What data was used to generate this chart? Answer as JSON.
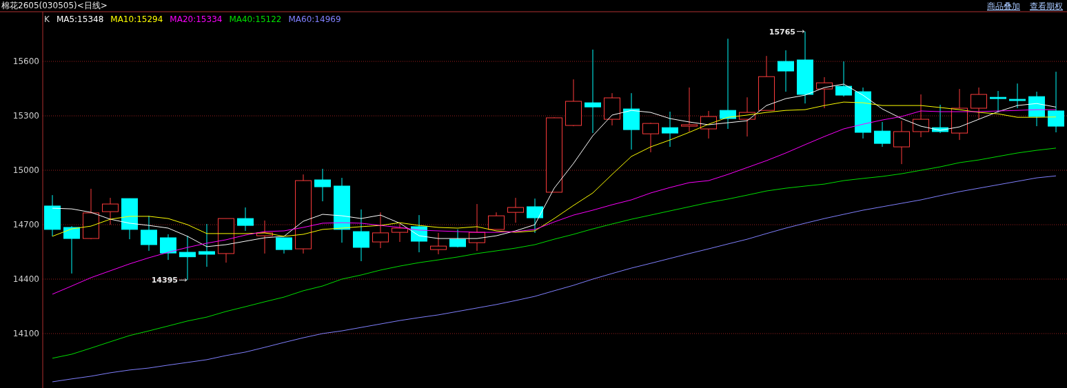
{
  "chart_data": {
    "type": "candlestick",
    "title": "棉花2605(030505)<日线>",
    "categories": [
      null,
      null,
      null,
      null,
      null,
      null,
      null,
      null,
      null,
      null,
      null,
      null,
      null,
      null,
      null,
      null,
      null,
      null,
      null,
      null,
      null,
      null,
      null,
      null,
      null,
      null,
      null,
      null,
      null,
      null,
      null,
      null,
      null,
      null,
      null,
      null,
      null,
      null,
      null,
      null,
      null,
      null,
      null,
      null,
      null,
      null,
      null,
      null,
      null,
      null,
      null,
      null,
      null
    ],
    "ylim": [
      13800,
      15870
    ],
    "yticks": [
      14100,
      14400,
      14700,
      15000,
      15300,
      15600
    ],
    "grid": "y",
    "legend": "top left",
    "annotations": [
      "15765",
      "14395",
      "商品叠加",
      "查看期权"
    ],
    "legend_title": "K",
    "series": [
      {
        "ohlc": [
          [
            14803,
            14863,
            14636,
            14674
          ],
          [
            14685,
            14692,
            14431,
            14624
          ],
          [
            14624,
            14898,
            14620,
            14765
          ],
          [
            14772,
            14848,
            14700,
            14814
          ],
          [
            14844,
            14844,
            14620,
            14674
          ],
          [
            14670,
            14749,
            14556,
            14590
          ],
          [
            14628,
            14647,
            14506,
            14544
          ],
          [
            14548,
            14639,
            14395,
            14523
          ],
          [
            14552,
            14704,
            14468,
            14537
          ],
          [
            14541,
            14734,
            14491,
            14734
          ],
          [
            14734,
            14795,
            14666,
            14696
          ],
          [
            14639,
            14723,
            14541,
            14655
          ],
          [
            14628,
            14628,
            14541,
            14563
          ],
          [
            14567,
            14977,
            14541,
            14943
          ],
          [
            14947,
            15008,
            14829,
            14909
          ],
          [
            14913,
            14958,
            14601,
            14674
          ],
          [
            14662,
            14784,
            14499,
            14575
          ],
          [
            14605,
            14768,
            14571,
            14655
          ],
          [
            14658,
            14704,
            14605,
            14681
          ],
          [
            14689,
            14753,
            14548,
            14609
          ],
          [
            14563,
            14655,
            14537,
            14582
          ],
          [
            14620,
            14674,
            14575,
            14579
          ],
          [
            14601,
            14814,
            14556,
            14658
          ],
          [
            14674,
            14768,
            14674,
            14749
          ],
          [
            14768,
            14848,
            14711,
            14795
          ],
          [
            14799,
            14844,
            14655,
            14738
          ],
          [
            14879,
            15292,
            14879,
            15289
          ],
          [
            15247,
            15501,
            15243,
            15380
          ],
          [
            15372,
            15665,
            15205,
            15349
          ],
          [
            15281,
            15425,
            15247,
            15399
          ],
          [
            15338,
            15425,
            15114,
            15224
          ],
          [
            15201,
            15262,
            15099,
            15258
          ],
          [
            15235,
            15323,
            15129,
            15205
          ],
          [
            15243,
            15456,
            15213,
            15251
          ],
          [
            15228,
            15327,
            15175,
            15296
          ],
          [
            15330,
            15725,
            15228,
            15285
          ],
          [
            15281,
            15402,
            15186,
            15319
          ],
          [
            15330,
            15630,
            15330,
            15516
          ],
          [
            15600,
            15661,
            15433,
            15547
          ],
          [
            15608,
            15765,
            15368,
            15418
          ],
          [
            15448,
            15513,
            15342,
            15482
          ],
          [
            15463,
            15600,
            15406,
            15414
          ],
          [
            15433,
            15456,
            15175,
            15209
          ],
          [
            15216,
            15266,
            15129,
            15148
          ],
          [
            15129,
            15273,
            15034,
            15213
          ],
          [
            15213,
            15418,
            15182,
            15281
          ],
          [
            15235,
            15361,
            15205,
            15213
          ],
          [
            15205,
            15448,
            15167,
            15342
          ],
          [
            15342,
            15456,
            15281,
            15418
          ],
          [
            15402,
            15437,
            15319,
            15395
          ],
          [
            15391,
            15478,
            15342,
            15384
          ],
          [
            15406,
            15433,
            15243,
            15296
          ],
          [
            15327,
            15543,
            15209,
            15243
          ]
        ],
        "colors": [
          "#00ffff",
          "#00ffff",
          "#ff3c3c",
          "#ff3c3c",
          "#00ffff",
          "#00ffff",
          "#00ffff",
          "#00ffff",
          "#00ffff",
          "#ff3c3c",
          "#00ffff",
          "#ff3c3c",
          "#00ffff",
          "#ff3c3c",
          "#00ffff",
          "#00ffff",
          "#00ffff",
          "#ff3c3c",
          "#ff3c3c",
          "#00ffff",
          "#ff3c3c",
          "#00ffff",
          "#ff3c3c",
          "#ff3c3c",
          "#ff3c3c",
          "#00ffff",
          "#ff3c3c",
          "#ff3c3c",
          "#00ffff",
          "#ff3c3c",
          "#00ffff",
          "#ff3c3c",
          "#00ffff",
          "#ff3c3c",
          "#ff3c3c",
          "#00ffff",
          "#ff3c3c",
          "#ff3c3c",
          "#00ffff",
          "#00ffff",
          "#ff3c3c",
          "#00ffff",
          "#00ffff",
          "#00ffff",
          "#ff3c3c",
          "#ff3c3c",
          "#00ffff",
          "#ff3c3c",
          "#ff3c3c",
          "#00ffff",
          "#00ffff",
          "#00ffff",
          "#00ffff"
        ]
      },
      {
        "name": "MA5:15348",
        "type": "line",
        "color": "#ffffff",
        "values": [
          14791,
          14787,
          14768,
          14730,
          14708,
          14696,
          14681,
          14636,
          14579,
          14590,
          14609,
          14628,
          14636,
          14719,
          14757,
          14749,
          14734,
          14753,
          14708,
          14639,
          14624,
          14624,
          14624,
          14639,
          14666,
          14700,
          14901,
          15038,
          15190,
          15304,
          15330,
          15319,
          15285,
          15266,
          15251,
          15262,
          15273,
          15357,
          15395,
          15414,
          15456,
          15475,
          15414,
          15338,
          15285,
          15243,
          15220,
          15239,
          15281,
          15323,
          15357,
          15368,
          15348
        ]
      },
      {
        "name": "MA10:15294",
        "type": "line",
        "color": "#ffff00",
        "values": [
          14636,
          14677,
          14692,
          14730,
          14746,
          14746,
          14734,
          14700,
          14651,
          14651,
          14651,
          14655,
          14636,
          14647,
          14674,
          14681,
          14689,
          14696,
          14711,
          14696,
          14685,
          14681,
          14689,
          14666,
          14658,
          14666,
          14734,
          14806,
          14875,
          14977,
          15076,
          15129,
          15167,
          15209,
          15254,
          15292,
          15304,
          15319,
          15330,
          15334,
          15357,
          15376,
          15372,
          15357,
          15357,
          15357,
          15346,
          15334,
          15319,
          15311,
          15292,
          15292,
          15294
        ]
      },
      {
        "name": "MA20:15334",
        "type": "line",
        "color": "#ff00ff",
        "values": [
          14317,
          14362,
          14408,
          14446,
          14484,
          14518,
          14548,
          14575,
          14598,
          14617,
          14643,
          14662,
          14666,
          14685,
          14708,
          14711,
          14708,
          14696,
          14685,
          14670,
          14666,
          14662,
          14658,
          14658,
          14662,
          14674,
          14715,
          14753,
          14780,
          14810,
          14837,
          14875,
          14905,
          14932,
          14943,
          14977,
          15015,
          15053,
          15095,
          15141,
          15186,
          15228,
          15254,
          15277,
          15296,
          15327,
          15323,
          15323,
          15323,
          15327,
          15330,
          15334,
          15334
        ]
      },
      {
        "name": "MA40:15122",
        "type": "line",
        "color": "#00e000",
        "values": [
          13964,
          13986,
          14020,
          14055,
          14089,
          14115,
          14142,
          14169,
          14191,
          14222,
          14248,
          14275,
          14301,
          14336,
          14362,
          14400,
          14423,
          14450,
          14472,
          14491,
          14506,
          14522,
          14541,
          14556,
          14571,
          14590,
          14620,
          14647,
          14677,
          14704,
          14730,
          14753,
          14776,
          14799,
          14822,
          14841,
          14863,
          14886,
          14901,
          14913,
          14924,
          14943,
          14955,
          14966,
          14981,
          15000,
          15019,
          15042,
          15057,
          15076,
          15095,
          15110,
          15122
        ]
      },
      {
        "name": "MA60:14969",
        "type": "line",
        "color": "#8080ff",
        "values": [
          13834,
          13850,
          13865,
          13884,
          13899,
          13910,
          13926,
          13941,
          13956,
          13979,
          13998,
          14024,
          14051,
          14077,
          14100,
          14115,
          14134,
          14153,
          14172,
          14188,
          14203,
          14222,
          14241,
          14260,
          14282,
          14305,
          14336,
          14366,
          14400,
          14431,
          14461,
          14487,
          14514,
          14541,
          14567,
          14594,
          14620,
          14651,
          14681,
          14708,
          14734,
          14757,
          14780,
          14799,
          14818,
          14837,
          14860,
          14882,
          14901,
          14920,
          14939,
          14958,
          14969
        ]
      }
    ]
  }
}
